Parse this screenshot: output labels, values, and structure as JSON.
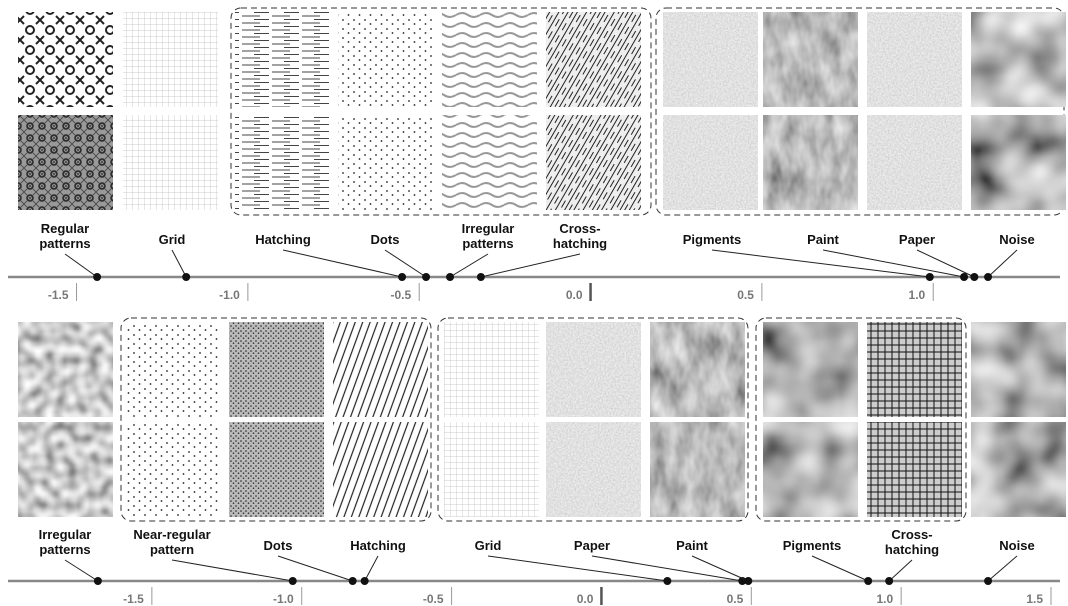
{
  "chart_data": [
    {
      "type": "dot",
      "categories": [
        "Regular patterns",
        "Grid",
        "Hatching",
        "Dots",
        "Irregular patterns",
        "Cross-hatching",
        "Pigments",
        "Paint",
        "Paper",
        "Noise"
      ],
      "values": [
        -1.44,
        -1.18,
        -0.55,
        -0.48,
        -0.41,
        -0.32,
        0.99,
        1.09,
        1.12,
        1.16
      ],
      "xlim": [
        -1.7,
        1.37
      ],
      "xticks": [
        {
          "value": -1.5,
          "label": "-1.5"
        },
        {
          "value": -1.0,
          "label": "-1.0"
        },
        -0.5,
        {
          "value": 0.0,
          "label": "0.0"
        },
        0.5,
        {
          "value": 1.0,
          "label": "1.0"
        }
      ]
    },
    {
      "type": "dot",
      "categories": [
        "Irregular patterns",
        "Near-regular pattern",
        "Dots",
        "Hatching",
        "Grid",
        "Paper",
        "Paint",
        "Pigments",
        "Cross-hatching",
        "Noise"
      ],
      "values": [
        -1.68,
        -1.03,
        -0.83,
        -0.79,
        0.22,
        0.47,
        0.49,
        0.89,
        0.96,
        1.29
      ],
      "xlim": [
        -1.98,
        1.53
      ],
      "xticks": [
        {
          "value": -1.5,
          "label": "-1.5"
        },
        {
          "value": -1.0,
          "label": "-1.0"
        },
        -0.5,
        {
          "value": 0.0,
          "label": "0.0"
        },
        0.5,
        {
          "value": 1.0,
          "label": "1.0"
        },
        1.5
      ]
    }
  ]
}
